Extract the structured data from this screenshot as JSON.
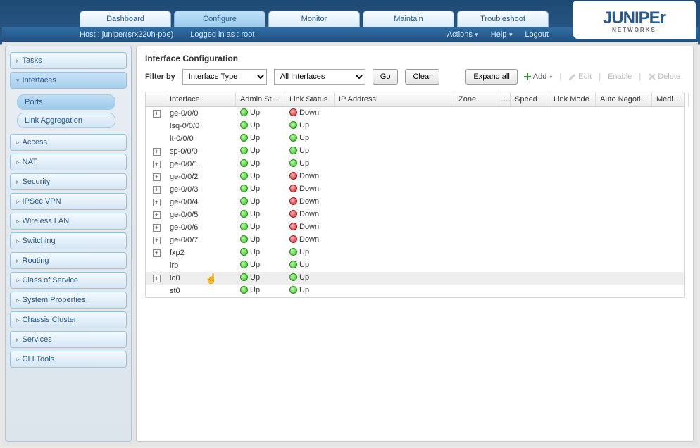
{
  "logo": {
    "big": "JUNIPEr",
    "small": "NETWORKS"
  },
  "topnav": {
    "tabs": [
      {
        "label": "Dashboard"
      },
      {
        "label": "Configure",
        "active": true
      },
      {
        "label": "Monitor"
      },
      {
        "label": "Maintain"
      },
      {
        "label": "Troubleshoot"
      }
    ]
  },
  "subbar": {
    "host": "Host : juniper(srx220h-poe)",
    "login": "Logged in as : root",
    "actions": "Actions",
    "help": "Help",
    "logout": "Logout"
  },
  "sidebar": {
    "items": [
      {
        "label": "Tasks"
      },
      {
        "label": "Interfaces",
        "active": true,
        "children": [
          {
            "label": "Ports",
            "active": true
          },
          {
            "label": "Link Aggregation"
          }
        ]
      },
      {
        "label": "Access"
      },
      {
        "label": "NAT"
      },
      {
        "label": "Security"
      },
      {
        "label": "IPSec VPN"
      },
      {
        "label": "Wireless LAN"
      },
      {
        "label": "Switching"
      },
      {
        "label": "Routing"
      },
      {
        "label": "Class of Service"
      },
      {
        "label": "System Properties"
      },
      {
        "label": "Chassis Cluster"
      },
      {
        "label": "Services"
      },
      {
        "label": "CLI Tools"
      }
    ]
  },
  "page": {
    "title": "Interface Configuration",
    "filter_label": "Filter by",
    "filter_type": "Interface Type",
    "filter_scope": "All Interfaces",
    "go": "Go",
    "clear": "Clear",
    "expand_all": "Expand all",
    "add": "Add",
    "edit": "Edit",
    "enable": "Enable",
    "delete": "Delete"
  },
  "grid": {
    "columns": [
      "",
      "Interface",
      "Admin St...",
      "Link Status",
      "IP Address",
      "Zone",
      "...",
      "Speed",
      "Link Mode",
      "Auto Negoti...",
      "Media ..."
    ],
    "rows": [
      {
        "exp": true,
        "iface": "ge-0/0/0",
        "admin": "Up",
        "link": "Down"
      },
      {
        "exp": false,
        "iface": "lsq-0/0/0",
        "admin": "Up",
        "link": "Up"
      },
      {
        "exp": false,
        "iface": "lt-0/0/0",
        "admin": "Up",
        "link": "Up"
      },
      {
        "exp": true,
        "iface": "sp-0/0/0",
        "admin": "Up",
        "link": "Up"
      },
      {
        "exp": true,
        "iface": "ge-0/0/1",
        "admin": "Up",
        "link": "Up"
      },
      {
        "exp": true,
        "iface": "ge-0/0/2",
        "admin": "Up",
        "link": "Down"
      },
      {
        "exp": true,
        "iface": "ge-0/0/3",
        "admin": "Up",
        "link": "Down"
      },
      {
        "exp": true,
        "iface": "ge-0/0/4",
        "admin": "Up",
        "link": "Down"
      },
      {
        "exp": true,
        "iface": "ge-0/0/5",
        "admin": "Up",
        "link": "Down"
      },
      {
        "exp": true,
        "iface": "ge-0/0/6",
        "admin": "Up",
        "link": "Down"
      },
      {
        "exp": true,
        "iface": "ge-0/0/7",
        "admin": "Up",
        "link": "Down"
      },
      {
        "exp": true,
        "iface": "fxp2",
        "admin": "Up",
        "link": "Up"
      },
      {
        "exp": false,
        "iface": "irb",
        "admin": "Up",
        "link": "Up"
      },
      {
        "exp": true,
        "iface": "lo0",
        "admin": "Up",
        "link": "Up",
        "hover": true
      },
      {
        "exp": false,
        "iface": "st0",
        "admin": "Up",
        "link": "Up"
      }
    ]
  }
}
